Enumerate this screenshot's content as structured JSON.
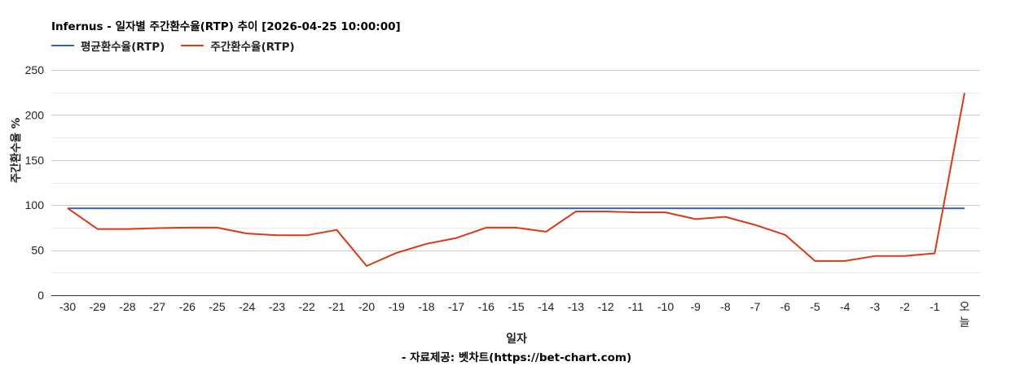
{
  "chart": {
    "title": "Infernus - 일자별 주간환수율(RTP) 추이 [2026-04-25 10:00:00]",
    "legend": [
      {
        "label": "평균환수율(RTP)",
        "color": "#3366cc"
      },
      {
        "label": "주간환수율(RTP)",
        "color": "#dc3912"
      }
    ],
    "ylabel": "주간환수율 %",
    "xlabel": "일자",
    "source": "- 자료제공: 벳차트(https://bet-chart.com)",
    "ytick_labels": [
      "0",
      "50",
      "100",
      "150",
      "200",
      "250"
    ]
  },
  "chart_data": {
    "type": "line",
    "title": "Infernus - 일자별 주간환수율(RTP) 추이 [2026-04-25 10:00:00]",
    "xlabel": "일자",
    "ylabel": "주간환수율 %",
    "ylim": [
      0,
      250
    ],
    "yticks": [
      0,
      50,
      100,
      150,
      200,
      250
    ],
    "grid": true,
    "legend_position": "top",
    "categories": [
      "-30",
      "-29",
      "-28",
      "-27",
      "-26",
      "-25",
      "-24",
      "-23",
      "-22",
      "-21",
      "-20",
      "-19",
      "-18",
      "-17",
      "-16",
      "-15",
      "-14",
      "-13",
      "-12",
      "-11",
      "-10",
      "-9",
      "-8",
      "-7",
      "-6",
      "-5",
      "-4",
      "-3",
      "-2",
      "-1",
      "오늘"
    ],
    "series": [
      {
        "name": "평균환수율(RTP)",
        "color": "#3366cc",
        "values": [
          96.5,
          96.5,
          96.5,
          96.5,
          96.5,
          96.5,
          96.5,
          96.5,
          96.5,
          96.5,
          96.5,
          96.5,
          96.5,
          96.5,
          96.5,
          96.5,
          96.5,
          96.5,
          96.5,
          96.5,
          96.5,
          96.5,
          96.5,
          96.5,
          96.5,
          96.5,
          96.5,
          96.5,
          96.5,
          96.5,
          96.5
        ]
      },
      {
        "name": "주간환수율(RTP)",
        "color": "#dc3912",
        "values": [
          96.5,
          73.5,
          73.5,
          74.5,
          75,
          75,
          68.5,
          66.5,
          66.5,
          72.5,
          32.5,
          47,
          57,
          63.5,
          75,
          75,
          70.5,
          93,
          93,
          92,
          92,
          84.5,
          87,
          78,
          67,
          38,
          38,
          43.5,
          43.5,
          46.5,
          224.5
        ]
      }
    ]
  }
}
